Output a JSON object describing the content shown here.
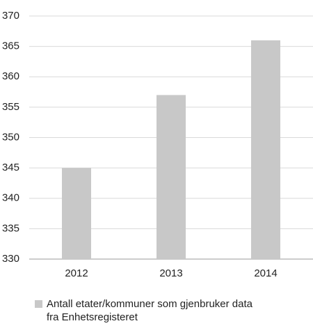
{
  "chart_data": {
    "type": "bar",
    "categories": [
      "2012",
      "2013",
      "2014"
    ],
    "series": [
      {
        "name": "Antall etater/kommuner som gjenbruker data fra Enhetsregisteret",
        "color": "#c8c8c8",
        "values": [
          345,
          357,
          366
        ]
      }
    ],
    "ylim": [
      330,
      370
    ],
    "yticks": [
      330,
      335,
      340,
      345,
      350,
      355,
      360,
      365,
      370
    ],
    "grid": true,
    "legend": "bottom"
  }
}
